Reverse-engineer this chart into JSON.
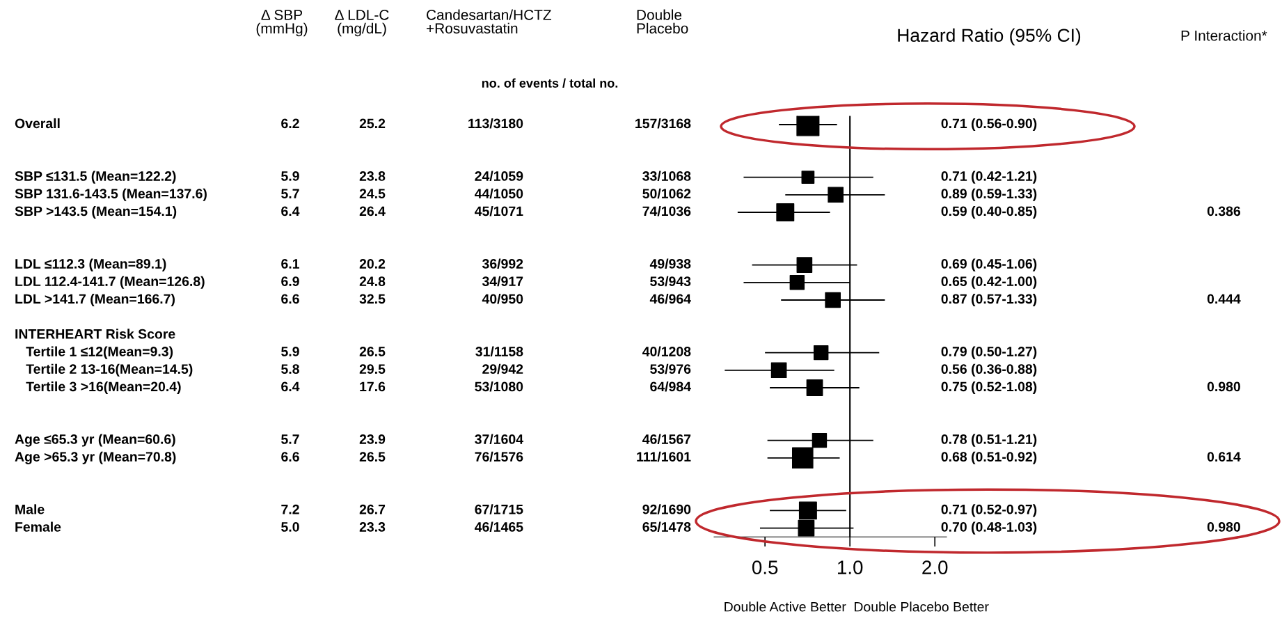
{
  "chart_data": [
    {
      "type": "other",
      "categories": [
        "Δ SBP\n(mmHg)",
        "Δ LDL-C\n(mg/dL)",
        "Candesartan/HCTZ\n+Rosuvastatin",
        "Double\nPlacebo"
      ],
      "y_categories": [
        "Overall",
        null,
        null,
        "SBP ≤131.5 (Mean=122.2)",
        "SBP 131.6-143.5 (Mean=137.6)",
        "SBP >143.5 (Mean=154.1)",
        null,
        null,
        "LDL ≤112.3 (Mean=89.1)",
        "LDL 112.4-141.7 (Mean=126.8)",
        "LDL >141.7 (Mean=166.7)",
        null,
        "INTERHEART Risk Score",
        "   Tertile 1 ≤12(Mean=9.3)",
        "   Tertile 2 13-16(Mean=14.5)",
        "   Tertile 3 >16(Mean=20.4)",
        null,
        null,
        "Age ≤65.3 yr (Mean=60.6)",
        "Age >65.3 yr (Mean=70.8)",
        null,
        null,
        "Male",
        "Female"
      ],
      "cell_labels": [
        [
          "6.2",
          "25.2",
          "113/3180",
          "157/3168"
        ],
        null,
        null,
        [
          "5.9",
          "23.8",
          "24/1059",
          "33/1068"
        ],
        [
          "5.7",
          "24.5",
          "44/1050",
          "50/1062"
        ],
        [
          "6.4",
          "26.4",
          "45/1071",
          "74/1036"
        ],
        null,
        null,
        [
          "6.1",
          "20.2",
          "36/992",
          "49/938"
        ],
        [
          "6.9",
          "24.8",
          "34/917",
          "53/943"
        ],
        [
          "6.6",
          "32.5",
          "40/950",
          "46/964"
        ],
        null,
        null,
        [
          "5.9",
          "26.5",
          "31/1158",
          "40/1208"
        ],
        [
          "5.8",
          "29.5",
          "29/942",
          "53/976"
        ],
        [
          "6.4",
          "17.6",
          "53/1080",
          "64/984"
        ],
        null,
        null,
        [
          "5.7",
          "23.9",
          "37/1604",
          "46/1567"
        ],
        [
          "6.6",
          "26.5",
          "76/1576",
          "111/1601"
        ],
        null,
        null,
        [
          "7.2",
          "26.7",
          "67/1715",
          "92/1690"
        ],
        [
          "5.0",
          "23.3",
          "46/1465",
          "65/1478"
        ]
      ],
      "annotations": [
        "no. of events / total no."
      ]
    },
    {
      "type": "bubble",
      "orientation": "horizontal",
      "title": "Hazard Ratio (95% CI)",
      "categories": [
        null,
        null,
        null,
        null,
        null,
        null,
        null,
        null,
        null,
        null,
        null,
        null,
        null,
        null,
        null,
        null,
        null,
        null,
        null,
        null,
        null,
        null,
        null,
        null
      ],
      "values": [
        0.71,
        null,
        null,
        0.71,
        0.89,
        0.59,
        null,
        null,
        0.69,
        0.65,
        0.87,
        null,
        null,
        0.79,
        0.56,
        0.75,
        null,
        null,
        0.78,
        0.68,
        null,
        null,
        0.71,
        0.7
      ],
      "errors": [
        [
          0.56,
          0.9
        ],
        null,
        null,
        [
          0.42,
          1.21
        ],
        [
          0.59,
          1.33
        ],
        [
          0.4,
          0.85
        ],
        null,
        null,
        [
          0.45,
          1.06
        ],
        [
          0.42,
          1.0
        ],
        [
          0.57,
          1.33
        ],
        null,
        null,
        [
          0.5,
          1.27
        ],
        [
          0.36,
          0.88
        ],
        [
          0.52,
          1.08
        ],
        null,
        null,
        [
          0.51,
          1.21
        ],
        [
          0.51,
          0.92
        ],
        null,
        null,
        [
          0.52,
          0.97
        ],
        [
          0.48,
          1.03
        ]
      ],
      "sizes": [
        1,
        null,
        null,
        0.3,
        0.45,
        0.6,
        null,
        null,
        0.45,
        0.4,
        0.45,
        null,
        null,
        0.4,
        0.45,
        0.5,
        null,
        null,
        0.4,
        0.85,
        null,
        null,
        0.6,
        0.5
      ],
      "value_labels": [
        "0.71 (0.56-0.90)",
        null,
        null,
        "0.71 (0.42-1.21)",
        "0.89 (0.59-1.33)",
        "0.59 (0.40-0.85)",
        null,
        null,
        "0.69 (0.45-1.06)",
        "0.65 (0.42-1.00)",
        "0.87 (0.57-1.33)",
        null,
        null,
        "0.79 (0.50-1.27)",
        "0.56 (0.36-0.88)",
        "0.75 (0.52-1.08)",
        null,
        null,
        "0.78 (0.51-1.21)",
        "0.68 (0.51-0.92)",
        null,
        null,
        "0.71 (0.52-0.97)",
        "0.70 (0.48-1.03)"
      ],
      "color": "#000000",
      "marker": "square",
      "log": "x",
      "xlim": [
        0.33,
        2.2
      ],
      "xticks": [
        {
          "value": 0.5,
          "label": "0.5"
        },
        {
          "value": 1.0,
          "label": "1.0"
        },
        {
          "value": 2.0,
          "label": "2.0"
        }
      ],
      "tick_labels": "x",
      "grid": false,
      "ref_lines": [
        {
          "axis": "x",
          "value": 1.0,
          "color": "#000000"
        }
      ],
      "annotations": [
        "Double Active Better",
        "Double Placebo Better"
      ]
    },
    {
      "type": "other",
      "title": "P Interaction*",
      "cell_labels": [
        null,
        null,
        null,
        null,
        null,
        "0.386",
        null,
        null,
        null,
        null,
        "0.444",
        null,
        null,
        null,
        null,
        "0.980",
        null,
        null,
        null,
        "0.614",
        null,
        null,
        null,
        "0.980"
      ]
    }
  ]
}
